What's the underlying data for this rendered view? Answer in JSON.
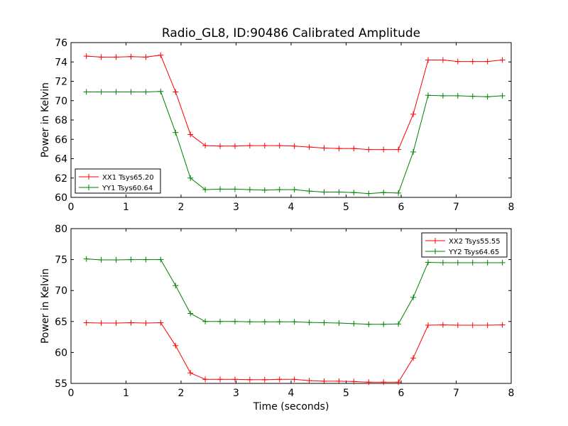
{
  "figure": {
    "title": "Radio_GL8, ID:90486 Calibrated Amplitude"
  },
  "chart_data": [
    {
      "type": "line",
      "title": "Radio_GL8, ID:90486 Calibrated Amplitude",
      "xlabel": "",
      "ylabel": "Power in Kelvin",
      "xlim": [
        0,
        8
      ],
      "ylim": [
        60,
        76
      ],
      "xticks": [
        "0",
        "1",
        "2",
        "3",
        "4",
        "5",
        "6",
        "7",
        "8"
      ],
      "yticks": [
        "60",
        "62",
        "64",
        "66",
        "68",
        "70",
        "72",
        "74",
        "76"
      ],
      "grid": false,
      "legend": "lower-left",
      "x": [
        0.28,
        0.55,
        0.82,
        1.09,
        1.36,
        1.63,
        1.9,
        2.17,
        2.44,
        2.71,
        2.98,
        3.25,
        3.52,
        3.79,
        4.06,
        4.33,
        4.6,
        4.87,
        5.14,
        5.41,
        5.68,
        5.95,
        6.22,
        6.49,
        6.76,
        7.03,
        7.3,
        7.57,
        7.84
      ],
      "series": [
        {
          "name": "XX1 Tsys65.20",
          "color": "#ff0000",
          "values": [
            74.6,
            74.5,
            74.5,
            74.55,
            74.5,
            74.7,
            70.9,
            66.5,
            65.35,
            65.3,
            65.3,
            65.35,
            65.35,
            65.35,
            65.3,
            65.2,
            65.1,
            65.05,
            65.05,
            64.95,
            64.95,
            64.95,
            68.6,
            74.2,
            74.2,
            74.05,
            74.05,
            74.05,
            74.2
          ]
        },
        {
          "name": "YY1 Tsys60.64",
          "color": "#008000",
          "values": [
            70.9,
            70.9,
            70.9,
            70.9,
            70.9,
            70.95,
            66.7,
            62.0,
            60.8,
            60.85,
            60.85,
            60.8,
            60.75,
            60.8,
            60.8,
            60.65,
            60.55,
            60.55,
            60.5,
            60.4,
            60.5,
            60.45,
            64.7,
            70.55,
            70.5,
            70.5,
            70.45,
            70.4,
            70.5
          ]
        }
      ]
    },
    {
      "type": "line",
      "title": "",
      "xlabel": "Time (seconds)",
      "ylabel": "Power in Kelvin",
      "xlim": [
        0,
        8
      ],
      "ylim": [
        55,
        80
      ],
      "xticks": [
        "0",
        "1",
        "2",
        "3",
        "4",
        "5",
        "6",
        "7",
        "8"
      ],
      "yticks": [
        "55",
        "60",
        "65",
        "70",
        "75",
        "80"
      ],
      "grid": false,
      "legend": "top-right",
      "x": [
        0.28,
        0.55,
        0.82,
        1.09,
        1.36,
        1.63,
        1.9,
        2.17,
        2.44,
        2.71,
        2.98,
        3.25,
        3.52,
        3.79,
        4.06,
        4.33,
        4.6,
        4.87,
        5.14,
        5.41,
        5.68,
        5.95,
        6.22,
        6.49,
        6.76,
        7.03,
        7.3,
        7.57,
        7.84
      ],
      "series": [
        {
          "name": "XX2 Tsys55.55",
          "color": "#ff0000",
          "values": [
            64.8,
            64.75,
            64.75,
            64.8,
            64.75,
            64.8,
            61.1,
            56.7,
            55.65,
            55.65,
            55.65,
            55.6,
            55.6,
            55.65,
            55.65,
            55.45,
            55.35,
            55.35,
            55.3,
            55.2,
            55.2,
            55.2,
            59.1,
            64.4,
            64.45,
            64.4,
            64.4,
            64.4,
            64.45
          ]
        },
        {
          "name": "YY2 Tsys64.65",
          "color": "#008000",
          "values": [
            75.1,
            74.95,
            74.95,
            75.0,
            75.0,
            75.0,
            70.8,
            66.3,
            65.0,
            65.0,
            65.0,
            64.95,
            64.95,
            64.95,
            64.95,
            64.85,
            64.8,
            64.75,
            64.65,
            64.55,
            64.55,
            64.6,
            68.9,
            74.55,
            74.5,
            74.5,
            74.5,
            74.5,
            74.5
          ]
        }
      ]
    }
  ]
}
